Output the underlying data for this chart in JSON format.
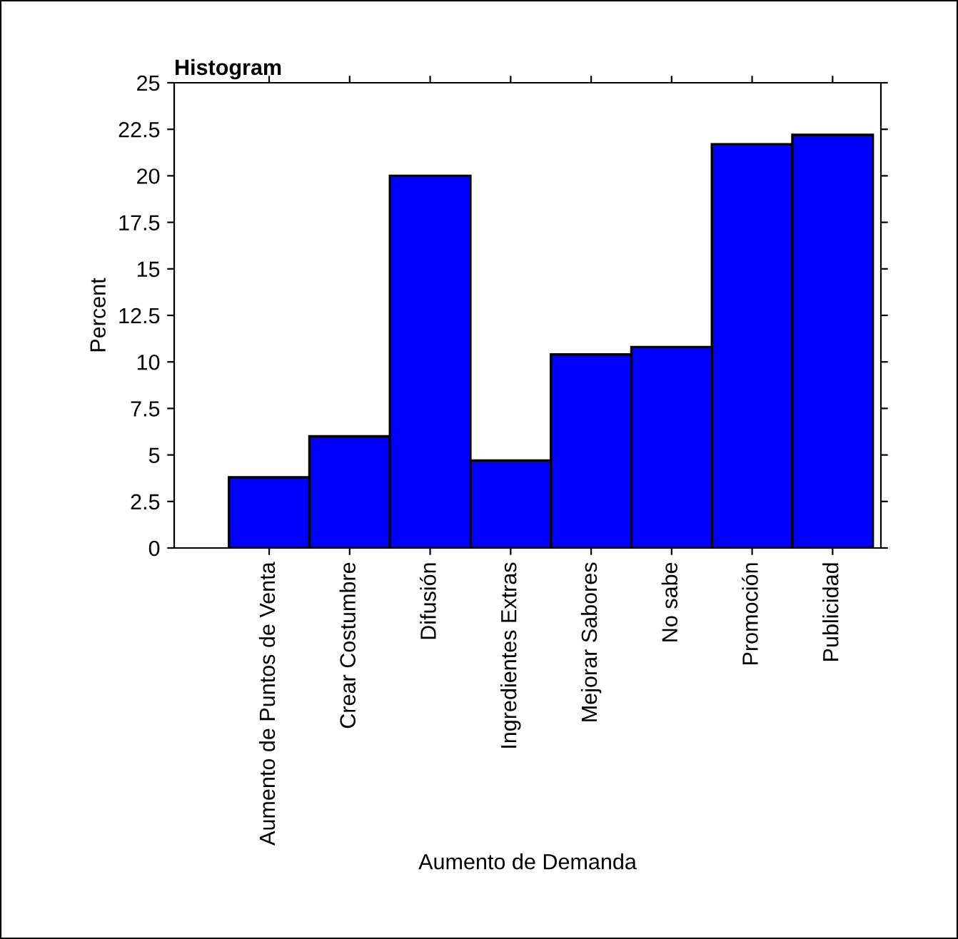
{
  "chart_data": {
    "type": "bar",
    "title": "Histogram",
    "xlabel": "Aumento de Demanda",
    "ylabel": "Percent",
    "categories": [
      "Aumento de Puntos de Venta",
      "Crear Costumbre",
      "Difusión",
      "Ingredientes Extras",
      "Mejorar Sabores",
      "No sabe",
      "Promoción",
      "Publicidad"
    ],
    "values": [
      3.8,
      6.0,
      20.0,
      4.7,
      10.4,
      10.8,
      21.7,
      22.2
    ],
    "color": "#0000ff",
    "ylim": [
      0,
      25
    ],
    "yticks": [
      0,
      2.5,
      5,
      7.5,
      10,
      12.5,
      15,
      17.5,
      20,
      22.5,
      25
    ],
    "grid": false,
    "legend": false
  }
}
